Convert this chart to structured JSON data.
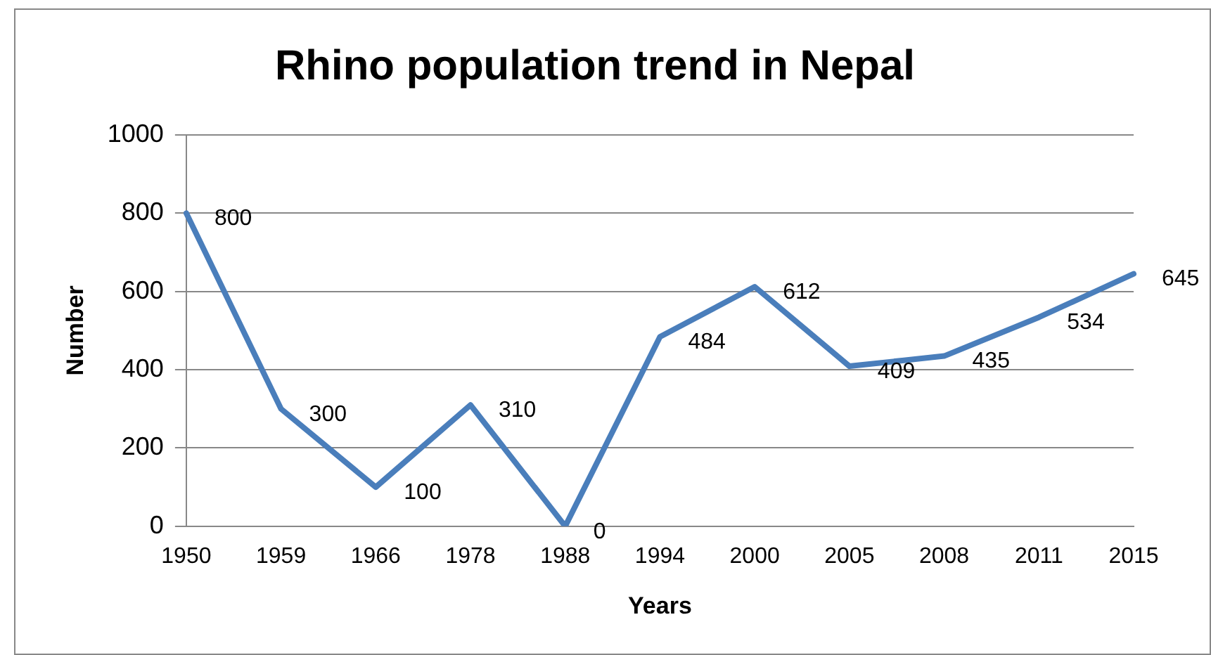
{
  "chart_data": {
    "type": "line",
    "title": "Rhino population trend in Nepal",
    "xlabel": "Years",
    "ylabel": "Number",
    "categories": [
      "1950",
      "1959",
      "1966",
      "1978",
      "1988",
      "1994",
      "2000",
      "2005",
      "2008",
      "2011",
      "2015"
    ],
    "series": [
      {
        "color": "#4a7ebb",
        "values": [
          800,
          300,
          100,
          310,
          0,
          484,
          612,
          409,
          435,
          534,
          645
        ]
      }
    ],
    "ylim": [
      0,
      1000
    ],
    "yticks": [
      0,
      200,
      400,
      600,
      800,
      1000
    ],
    "grid": "y",
    "legend": false,
    "marker": "none",
    "line_style": "solid",
    "data_labels": true
  }
}
